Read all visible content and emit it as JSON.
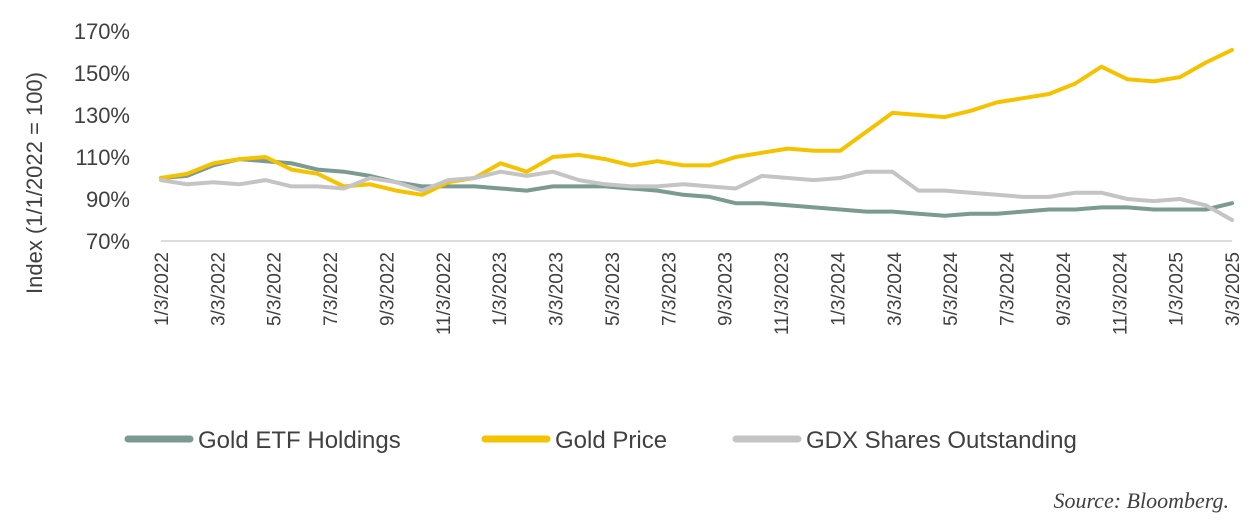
{
  "chart_data": {
    "type": "line",
    "ylabel": "Index (1/1/2022 = 100)",
    "ylim": [
      70,
      170
    ],
    "yticks": [
      "70%",
      "90%",
      "110%",
      "130%",
      "150%",
      "170%"
    ],
    "ytick_values": [
      70,
      90,
      110,
      130,
      150,
      170
    ],
    "xticks": [
      "1/3/2022",
      "3/3/2022",
      "5/3/2022",
      "7/3/2022",
      "9/3/2022",
      "11/3/2022",
      "1/3/2023",
      "3/3/2023",
      "5/3/2023",
      "7/3/2023",
      "9/3/2023",
      "11/3/2023",
      "1/3/2024",
      "3/3/2024",
      "5/3/2024",
      "7/3/2024",
      "9/3/2024",
      "11/3/2024",
      "1/3/2025",
      "3/3/2025"
    ],
    "grid": false,
    "legend_position": "bottom",
    "series": [
      {
        "name": "Gold ETF Holdings",
        "color": "#7a9a92",
        "values": [
          100,
          101,
          106,
          109,
          108,
          107,
          104,
          103,
          101,
          98,
          96,
          96,
          96,
          95,
          94,
          96,
          96,
          96,
          95,
          94,
          92,
          91,
          88,
          88,
          87,
          86,
          85,
          84,
          84,
          83,
          82,
          83,
          83,
          84,
          85,
          85,
          86,
          86,
          85,
          85,
          85,
          88
        ]
      },
      {
        "name": "Gold Price",
        "color": "#f5c200",
        "values": [
          100,
          102,
          107,
          109,
          110,
          104,
          102,
          96,
          97,
          94,
          92,
          98,
          100,
          107,
          103,
          110,
          111,
          109,
          106,
          108,
          106,
          106,
          110,
          112,
          114,
          113,
          113,
          122,
          131,
          130,
          129,
          132,
          136,
          138,
          140,
          145,
          153,
          147,
          146,
          148,
          155,
          161
        ]
      },
      {
        "name": "GDX Shares Outstanding",
        "color": "#c4c4c4",
        "values": [
          99,
          97,
          98,
          97,
          99,
          96,
          96,
          95,
          100,
          98,
          94,
          99,
          100,
          103,
          101,
          103,
          99,
          97,
          96,
          96,
          97,
          96,
          95,
          101,
          100,
          99,
          100,
          103,
          103,
          94,
          94,
          93,
          92,
          91,
          91,
          93,
          93,
          90,
          89,
          90,
          87,
          80
        ]
      }
    ]
  },
  "source_note": "Source: Bloomberg."
}
